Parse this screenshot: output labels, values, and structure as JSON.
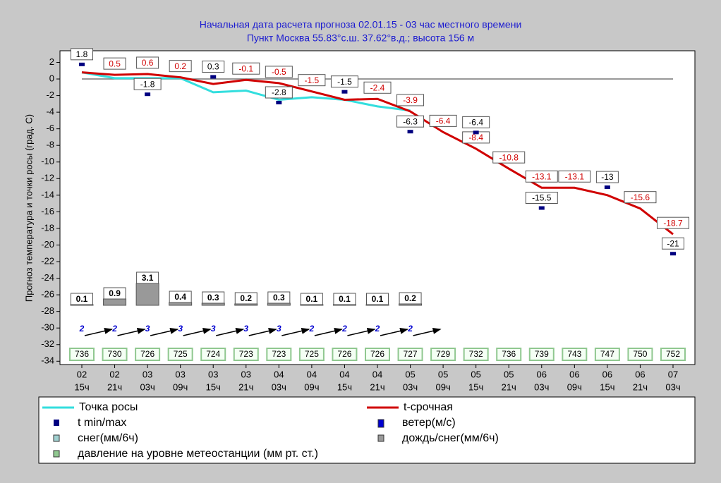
{
  "chart_data": {
    "type": "line",
    "title": "Начальная дата расчета прогноза 02.01.15 - 03 час местного времени",
    "subtitle": "Пункт  Москва  55.83°с.ш.  37.62°в.д.; высота 156 м",
    "y_label": "Прогноз температура и точки росы (град. С)",
    "categories": [
      {
        "day": "02",
        "hour": "15ч"
      },
      {
        "day": "02",
        "hour": "21ч"
      },
      {
        "day": "03",
        "hour": "03ч"
      },
      {
        "day": "03",
        "hour": "09ч"
      },
      {
        "day": "03",
        "hour": "15ч"
      },
      {
        "day": "03",
        "hour": "21ч"
      },
      {
        "day": "04",
        "hour": "03ч"
      },
      {
        "day": "04",
        "hour": "09ч"
      },
      {
        "day": "04",
        "hour": "15ч"
      },
      {
        "day": "04",
        "hour": "21ч"
      },
      {
        "day": "05",
        "hour": "03ч"
      },
      {
        "day": "05",
        "hour": "09ч"
      },
      {
        "day": "05",
        "hour": "15ч"
      },
      {
        "day": "05",
        "hour": "21ч"
      },
      {
        "day": "06",
        "hour": "03ч"
      },
      {
        "day": "06",
        "hour": "09ч"
      },
      {
        "day": "06",
        "hour": "15ч"
      },
      {
        "day": "06",
        "hour": "21ч"
      },
      {
        "day": "07",
        "hour": "03ч"
      }
    ],
    "ylim": [
      -34.4,
      3.4
    ],
    "yticks": [
      2,
      0,
      -2,
      -4,
      -6,
      -8,
      -10,
      -12,
      -14,
      -16,
      -18,
      -20,
      -22,
      -24,
      -26,
      -28,
      -30,
      -32,
      -34
    ],
    "series": [
      {
        "name": "Точка росы",
        "type": "line",
        "color": "#33dede",
        "values": [
          0.8,
          0.1,
          0.1,
          0.1,
          -1.6,
          -1.4,
          -2.5,
          -2.2,
          -2.5,
          -3.3,
          -3.8,
          null,
          null,
          null,
          null,
          null,
          null,
          null,
          null
        ]
      },
      {
        "name": "t-срочная",
        "type": "line",
        "color": "#d00000",
        "values": [
          0.8,
          0.5,
          0.6,
          0.2,
          -0.6,
          -0.1,
          -0.5,
          -1.5,
          -2.5,
          -2.4,
          -3.9,
          -6.4,
          -8.4,
          -10.8,
          -13.1,
          -13.1,
          -14,
          -15.6,
          -18.7
        ],
        "labeled": [
          false,
          true,
          true,
          true,
          false,
          true,
          true,
          true,
          false,
          true,
          true,
          true,
          true,
          true,
          true,
          true,
          false,
          true,
          true
        ]
      },
      {
        "name": "t min/max",
        "type": "minmax",
        "color": "#000080",
        "values": [
          1.8,
          null,
          -1.8,
          null,
          0.3,
          null,
          -2.8,
          null,
          -1.5,
          null,
          -6.3,
          null,
          -6.4,
          null,
          -15.5,
          null,
          -13,
          null,
          -21
        ]
      },
      {
        "name": "ветер(м/с)",
        "type": "wind",
        "color": "#0000d0",
        "values": [
          2,
          2,
          3,
          3,
          3,
          3,
          3,
          2,
          2,
          2,
          2,
          null,
          null,
          null,
          null,
          null,
          null,
          null,
          null
        ]
      },
      {
        "name": "снег(мм/6ч)",
        "type": "snow",
        "color": "#a0d0d0"
      },
      {
        "name": "дождь/снег(мм/6ч)",
        "type": "precip",
        "color": "#999999",
        "values": [
          0.1,
          0.9,
          3.1,
          0.4,
          0.3,
          0.2,
          0.3,
          0.1,
          0.1,
          0.1,
          0.2,
          null,
          null,
          null,
          null,
          null,
          null,
          null,
          null
        ]
      },
      {
        "name": "давление на уровне метеостанции (мм рт. ст.)",
        "type": "pressure",
        "color": "#90c890",
        "values": [
          736,
          730,
          726,
          725,
          724,
          723,
          723,
          725,
          726,
          726,
          727,
          729,
          732,
          736,
          739,
          743,
          747,
          750,
          752
        ]
      }
    ]
  }
}
